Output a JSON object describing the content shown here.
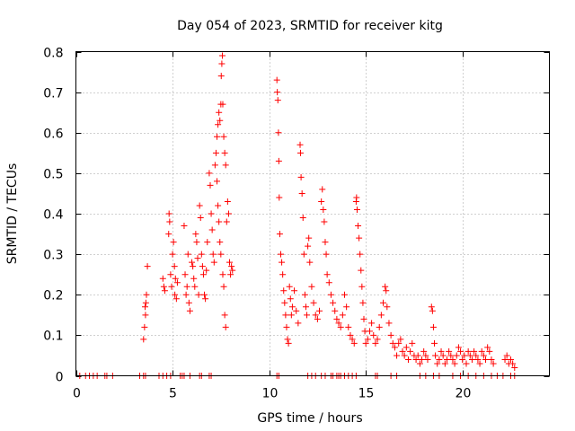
{
  "chart_data": {
    "type": "scatter",
    "title": "Day 054 of 2023, SRMTID for receiver kitg",
    "xlabel": "GPS time / hours",
    "ylabel": "SRMTID / TECUs",
    "xlim": [
      0,
      24.5
    ],
    "ylim": [
      0,
      0.8
    ],
    "x_ticks": [
      0,
      5,
      10,
      15,
      20
    ],
    "x_tick_labels": [
      "0",
      "5",
      "10",
      "15",
      "20"
    ],
    "y_ticks": [
      0,
      0.1,
      0.2,
      0.3,
      0.4,
      0.5,
      0.6,
      0.7,
      0.8
    ],
    "y_tick_labels": [
      "0",
      "0.1",
      "0.2",
      "0.3",
      "0.4",
      "0.5",
      "0.6",
      "0.7",
      "0.8"
    ],
    "grid": true,
    "marker": "+",
    "color": "#ff0000",
    "series": [
      {
        "name": "SRMTID",
        "points": [
          [
            0.2,
            0
          ],
          [
            0.5,
            0
          ],
          [
            0.7,
            0
          ],
          [
            0.9,
            0
          ],
          [
            1.1,
            0
          ],
          [
            1.5,
            0
          ],
          [
            1.6,
            0
          ],
          [
            1.9,
            0
          ],
          [
            3.3,
            0
          ],
          [
            3.5,
            0
          ],
          [
            3.6,
            0
          ],
          [
            4.3,
            0
          ],
          [
            4.5,
            0
          ],
          [
            4.7,
            0
          ],
          [
            4.9,
            0
          ],
          [
            5.4,
            0
          ],
          [
            5.5,
            0
          ],
          [
            5.6,
            0
          ],
          [
            5.9,
            0
          ],
          [
            6.4,
            0
          ],
          [
            6.5,
            0
          ],
          [
            6.9,
            0
          ],
          [
            7.0,
            0
          ],
          [
            10.4,
            0
          ],
          [
            10.5,
            0
          ],
          [
            12.0,
            0
          ],
          [
            12.2,
            0
          ],
          [
            12.4,
            0
          ],
          [
            12.7,
            0
          ],
          [
            12.9,
            0
          ],
          [
            13.2,
            0
          ],
          [
            13.3,
            0
          ],
          [
            13.5,
            0
          ],
          [
            13.6,
            0
          ],
          [
            13.7,
            0
          ],
          [
            13.9,
            0
          ],
          [
            14.1,
            0
          ],
          [
            14.3,
            0
          ],
          [
            14.5,
            0
          ],
          [
            15.5,
            0
          ],
          [
            15.6,
            0
          ],
          [
            16.3,
            0
          ],
          [
            16.6,
            0
          ],
          [
            17.8,
            0
          ],
          [
            18.1,
            0
          ],
          [
            18.5,
            0
          ],
          [
            18.8,
            0
          ],
          [
            19.5,
            0
          ],
          [
            19.9,
            0
          ],
          [
            20.3,
            0
          ],
          [
            20.7,
            0
          ],
          [
            21.1,
            0
          ],
          [
            21.5,
            0
          ],
          [
            21.8,
            0
          ],
          [
            22.1,
            0
          ],
          [
            22.5,
            0
          ],
          [
            22.7,
            0
          ],
          [
            3.5,
            0.09
          ],
          [
            3.55,
            0.12
          ],
          [
            3.6,
            0.15
          ],
          [
            3.62,
            0.18
          ],
          [
            3.65,
            0.2
          ],
          [
            3.7,
            0.27
          ],
          [
            3.58,
            0.17
          ],
          [
            4.5,
            0.24
          ],
          [
            4.55,
            0.22
          ],
          [
            4.6,
            0.21
          ],
          [
            4.8,
            0.35
          ],
          [
            4.82,
            0.4
          ],
          [
            4.85,
            0.38
          ],
          [
            4.9,
            0.25
          ],
          [
            4.95,
            0.22
          ],
          [
            5.0,
            0.3
          ],
          [
            5.05,
            0.33
          ],
          [
            5.1,
            0.27
          ],
          [
            5.12,
            0.2
          ],
          [
            5.15,
            0.24
          ],
          [
            5.2,
            0.19
          ],
          [
            5.25,
            0.23
          ],
          [
            5.6,
            0.37
          ],
          [
            5.65,
            0.25
          ],
          [
            5.7,
            0.2
          ],
          [
            5.75,
            0.22
          ],
          [
            5.8,
            0.3
          ],
          [
            5.85,
            0.18
          ],
          [
            5.9,
            0.16
          ],
          [
            6.0,
            0.28
          ],
          [
            6.05,
            0.27
          ],
          [
            6.1,
            0.24
          ],
          [
            6.15,
            0.22
          ],
          [
            6.2,
            0.35
          ],
          [
            6.25,
            0.33
          ],
          [
            6.3,
            0.29
          ],
          [
            6.35,
            0.2
          ],
          [
            6.4,
            0.42
          ],
          [
            6.45,
            0.39
          ],
          [
            6.5,
            0.3
          ],
          [
            6.55,
            0.27
          ],
          [
            6.6,
            0.25
          ],
          [
            6.65,
            0.2
          ],
          [
            6.7,
            0.19
          ],
          [
            6.75,
            0.26
          ],
          [
            6.8,
            0.33
          ],
          [
            6.9,
            0.5
          ],
          [
            6.95,
            0.47
          ],
          [
            7.0,
            0.4
          ],
          [
            7.05,
            0.36
          ],
          [
            7.1,
            0.3
          ],
          [
            7.15,
            0.28
          ],
          [
            7.2,
            0.52
          ],
          [
            7.25,
            0.55
          ],
          [
            7.3,
            0.59
          ],
          [
            7.35,
            0.62
          ],
          [
            7.4,
            0.65
          ],
          [
            7.45,
            0.63
          ],
          [
            7.5,
            0.67
          ],
          [
            7.52,
            0.74
          ],
          [
            7.55,
            0.77
          ],
          [
            7.58,
            0.79
          ],
          [
            7.6,
            0.67
          ],
          [
            7.65,
            0.59
          ],
          [
            7.7,
            0.55
          ],
          [
            7.75,
            0.52
          ],
          [
            7.3,
            0.48
          ],
          [
            7.35,
            0.42
          ],
          [
            7.4,
            0.38
          ],
          [
            7.45,
            0.33
          ],
          [
            7.5,
            0.3
          ],
          [
            7.6,
            0.25
          ],
          [
            7.65,
            0.22
          ],
          [
            7.7,
            0.15
          ],
          [
            7.75,
            0.12
          ],
          [
            7.8,
            0.38
          ],
          [
            7.85,
            0.43
          ],
          [
            7.9,
            0.4
          ],
          [
            7.95,
            0.28
          ],
          [
            8.0,
            0.25
          ],
          [
            8.05,
            0.27
          ],
          [
            8.1,
            0.26
          ],
          [
            10.4,
            0.73
          ],
          [
            10.42,
            0.7
          ],
          [
            10.45,
            0.68
          ],
          [
            10.48,
            0.6
          ],
          [
            10.5,
            0.53
          ],
          [
            10.52,
            0.44
          ],
          [
            10.55,
            0.35
          ],
          [
            10.6,
            0.3
          ],
          [
            10.65,
            0.28
          ],
          [
            10.7,
            0.25
          ],
          [
            10.75,
            0.21
          ],
          [
            10.8,
            0.18
          ],
          [
            10.85,
            0.15
          ],
          [
            10.9,
            0.12
          ],
          [
            10.95,
            0.09
          ],
          [
            11.0,
            0.08
          ],
          [
            11.05,
            0.22
          ],
          [
            11.1,
            0.19
          ],
          [
            11.15,
            0.15
          ],
          [
            11.2,
            0.17
          ],
          [
            11.3,
            0.21
          ],
          [
            11.4,
            0.16
          ],
          [
            11.5,
            0.13
          ],
          [
            11.6,
            0.57
          ],
          [
            11.62,
            0.55
          ],
          [
            11.65,
            0.49
          ],
          [
            11.7,
            0.45
          ],
          [
            11.75,
            0.39
          ],
          [
            11.8,
            0.3
          ],
          [
            11.85,
            0.2
          ],
          [
            11.9,
            0.17
          ],
          [
            11.95,
            0.15
          ],
          [
            12.0,
            0.32
          ],
          [
            12.05,
            0.34
          ],
          [
            12.1,
            0.28
          ],
          [
            12.2,
            0.22
          ],
          [
            12.3,
            0.18
          ],
          [
            12.4,
            0.15
          ],
          [
            12.5,
            0.14
          ],
          [
            12.6,
            0.16
          ],
          [
            12.7,
            0.43
          ],
          [
            12.75,
            0.46
          ],
          [
            12.8,
            0.41
          ],
          [
            12.85,
            0.38
          ],
          [
            12.9,
            0.33
          ],
          [
            12.95,
            0.3
          ],
          [
            13.0,
            0.25
          ],
          [
            13.1,
            0.23
          ],
          [
            13.2,
            0.2
          ],
          [
            13.3,
            0.18
          ],
          [
            13.4,
            0.16
          ],
          [
            13.5,
            0.14
          ],
          [
            13.6,
            0.13
          ],
          [
            13.7,
            0.12
          ],
          [
            13.8,
            0.15
          ],
          [
            13.9,
            0.2
          ],
          [
            14.0,
            0.17
          ],
          [
            14.1,
            0.12
          ],
          [
            14.2,
            0.1
          ],
          [
            14.3,
            0.09
          ],
          [
            14.4,
            0.08
          ],
          [
            14.5,
            0.43
          ],
          [
            14.52,
            0.44
          ],
          [
            14.55,
            0.41
          ],
          [
            14.6,
            0.37
          ],
          [
            14.65,
            0.34
          ],
          [
            14.7,
            0.3
          ],
          [
            14.75,
            0.26
          ],
          [
            14.8,
            0.22
          ],
          [
            14.85,
            0.18
          ],
          [
            14.9,
            0.14
          ],
          [
            14.95,
            0.11
          ],
          [
            15.0,
            0.08
          ],
          [
            15.1,
            0.09
          ],
          [
            15.2,
            0.11
          ],
          [
            15.3,
            0.13
          ],
          [
            15.4,
            0.1
          ],
          [
            15.5,
            0.08
          ],
          [
            15.6,
            0.09
          ],
          [
            15.7,
            0.12
          ],
          [
            15.8,
            0.15
          ],
          [
            15.9,
            0.18
          ],
          [
            16.0,
            0.22
          ],
          [
            16.05,
            0.21
          ],
          [
            16.1,
            0.17
          ],
          [
            16.2,
            0.13
          ],
          [
            16.3,
            0.1
          ],
          [
            16.4,
            0.08
          ],
          [
            16.5,
            0.07
          ],
          [
            16.6,
            0.05
          ],
          [
            16.7,
            0.08
          ],
          [
            16.8,
            0.09
          ],
          [
            16.9,
            0.06
          ],
          [
            17.0,
            0.05
          ],
          [
            17.1,
            0.07
          ],
          [
            17.2,
            0.04
          ],
          [
            17.3,
            0.06
          ],
          [
            17.4,
            0.08
          ],
          [
            17.5,
            0.05
          ],
          [
            17.6,
            0.04
          ],
          [
            17.7,
            0.05
          ],
          [
            17.8,
            0.03
          ],
          [
            17.9,
            0.04
          ],
          [
            18.0,
            0.06
          ],
          [
            18.1,
            0.05
          ],
          [
            18.2,
            0.04
          ],
          [
            18.4,
            0.17
          ],
          [
            18.45,
            0.16
          ],
          [
            18.5,
            0.12
          ],
          [
            18.55,
            0.08
          ],
          [
            18.6,
            0.05
          ],
          [
            18.7,
            0.03
          ],
          [
            18.8,
            0.04
          ],
          [
            18.9,
            0.06
          ],
          [
            19.0,
            0.05
          ],
          [
            19.1,
            0.03
          ],
          [
            19.2,
            0.04
          ],
          [
            19.3,
            0.06
          ],
          [
            19.4,
            0.05
          ],
          [
            19.5,
            0.04
          ],
          [
            19.6,
            0.03
          ],
          [
            19.7,
            0.05
          ],
          [
            19.8,
            0.07
          ],
          [
            19.9,
            0.06
          ],
          [
            20.0,
            0.04
          ],
          [
            20.1,
            0.05
          ],
          [
            20.2,
            0.03
          ],
          [
            20.3,
            0.06
          ],
          [
            20.4,
            0.05
          ],
          [
            20.5,
            0.04
          ],
          [
            20.6,
            0.06
          ],
          [
            20.7,
            0.05
          ],
          [
            20.8,
            0.04
          ],
          [
            20.9,
            0.03
          ],
          [
            21.0,
            0.06
          ],
          [
            21.1,
            0.05
          ],
          [
            21.2,
            0.04
          ],
          [
            21.3,
            0.07
          ],
          [
            21.4,
            0.06
          ],
          [
            21.5,
            0.04
          ],
          [
            21.6,
            0.03
          ],
          [
            22.2,
            0.04
          ],
          [
            22.3,
            0.05
          ],
          [
            22.4,
            0.03
          ],
          [
            22.5,
            0.04
          ],
          [
            22.6,
            0.03
          ],
          [
            22.7,
            0.02
          ]
        ]
      }
    ]
  }
}
